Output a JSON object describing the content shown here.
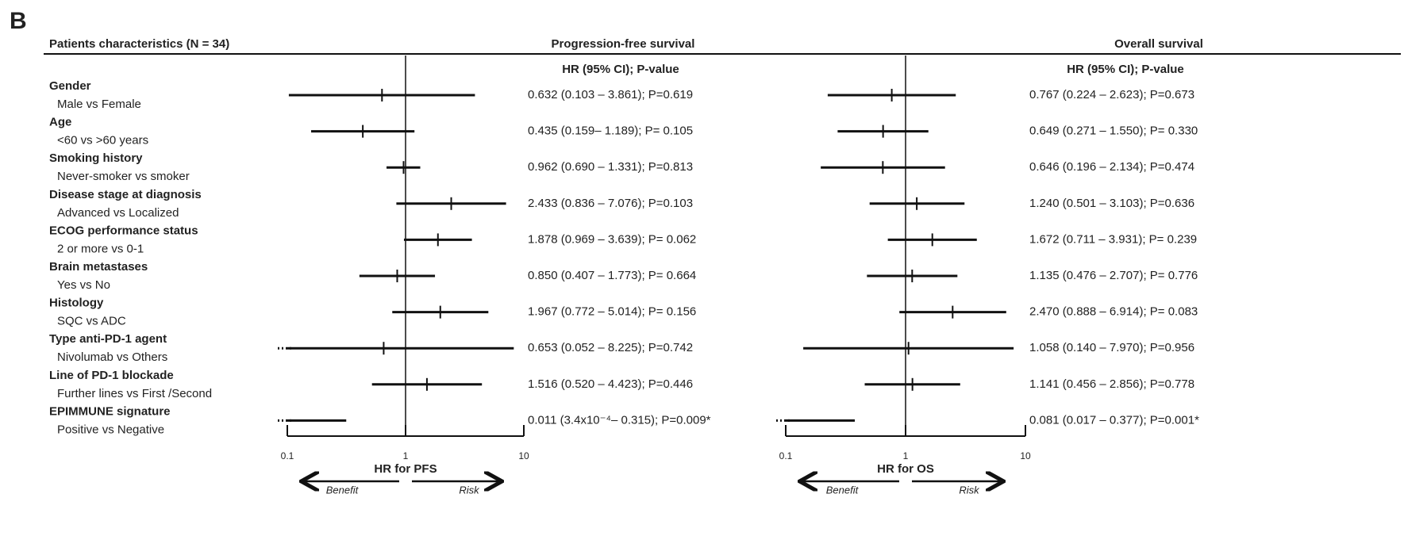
{
  "panel_label": "B",
  "header": "Patients characteristics (N = 34)",
  "rows": [
    {
      "label": "Gender",
      "sublabel": "Male vs Female"
    },
    {
      "label": "Age",
      "sublabel": "<60 vs >60 years"
    },
    {
      "label": "Smoking history",
      "sublabel": "Never-smoker vs smoker"
    },
    {
      "label": "Disease stage at diagnosis",
      "sublabel": "Advanced vs Localized"
    },
    {
      "label": "ECOG performance status",
      "sublabel": "2 or more vs 0-1"
    },
    {
      "label": "Brain metastases",
      "sublabel": "Yes vs No"
    },
    {
      "label": "Histology",
      "sublabel": "SQC vs ADC"
    },
    {
      "label": "Type anti-PD-1 agent",
      "sublabel": "Nivolumab vs Others"
    },
    {
      "label": "Line of PD-1 blockade",
      "sublabel": "Further lines vs First /Second"
    },
    {
      "label": "EPIMMUNE signature",
      "sublabel": "Positive vs Negative"
    }
  ],
  "chart_data": [
    {
      "type": "forest",
      "title": "Progression-free survival",
      "column_header": "HR (95% CI); P-value",
      "xlabel": "HR for PFS",
      "benefit_label": "Benefit",
      "risk_label": "Risk",
      "log": true,
      "xlim": [
        0.1,
        10
      ],
      "xticks": [
        0.1,
        1,
        10
      ],
      "reference": 1,
      "color": "#111111",
      "values": [
        0.632,
        0.435,
        0.962,
        2.433,
        1.878,
        0.85,
        1.967,
        0.653,
        1.516,
        0.011
      ],
      "lower": [
        0.103,
        0.159,
        0.69,
        0.836,
        0.969,
        0.407,
        0.772,
        0.052,
        0.52,
        0.00034
      ],
      "upper": [
        3.861,
        1.189,
        1.331,
        7.076,
        3.639,
        1.773,
        5.014,
        8.225,
        4.423,
        0.315
      ],
      "value_labels": [
        "0.632 (0.103 – 3.861); P=0.619",
        "0.435 (0.159– 1.189); P= 0.105",
        "0.962 (0.690 – 1.331); P=0.813",
        "2.433 (0.836 – 7.076); P=0.103",
        "1.878 (0.969 – 3.639); P= 0.062",
        "0.850 (0.407 – 1.773); P= 0.664",
        "1.967 (0.772 – 5.014); P= 0.156",
        "0.653 (0.052 – 8.225); P=0.742",
        "1.516 (0.520 – 4.423); P=0.446",
        "0.011 (3.4x10⁻⁴– 0.315); P=0.009*"
      ]
    },
    {
      "type": "forest",
      "title": "Overall survival",
      "column_header": "HR (95% CI); P-value",
      "xlabel": "HR for OS",
      "benefit_label": "Benefit",
      "risk_label": "Risk",
      "log": true,
      "xlim": [
        0.1,
        10
      ],
      "xticks": [
        0.1,
        1,
        10
      ],
      "reference": 1,
      "color": "#111111",
      "values": [
        0.767,
        0.649,
        0.646,
        1.24,
        1.672,
        1.135,
        2.47,
        1.058,
        1.141,
        0.081
      ],
      "lower": [
        0.224,
        0.271,
        0.196,
        0.501,
        0.711,
        0.476,
        0.888,
        0.14,
        0.456,
        0.017
      ],
      "upper": [
        2.623,
        1.55,
        2.134,
        3.103,
        3.931,
        2.707,
        6.914,
        7.97,
        2.856,
        0.377
      ],
      "value_labels": [
        "0.767 (0.224 – 2.623); P=0.673",
        "0.649 (0.271 – 1.550); P= 0.330",
        "0.646 (0.196 – 2.134); P=0.474",
        "1.240 (0.501 – 3.103); P=0.636",
        "1.672 (0.711 – 3.931); P= 0.239",
        "1.135 (0.476 – 2.707); P= 0.776",
        "2.470 (0.888 – 6.914); P= 0.083",
        "1.058 (0.140 – 7.970); P=0.956",
        "1.141 (0.456 – 2.856); P=0.778",
        "0.081 (0.017 – 0.377); P=0.001*"
      ]
    }
  ]
}
